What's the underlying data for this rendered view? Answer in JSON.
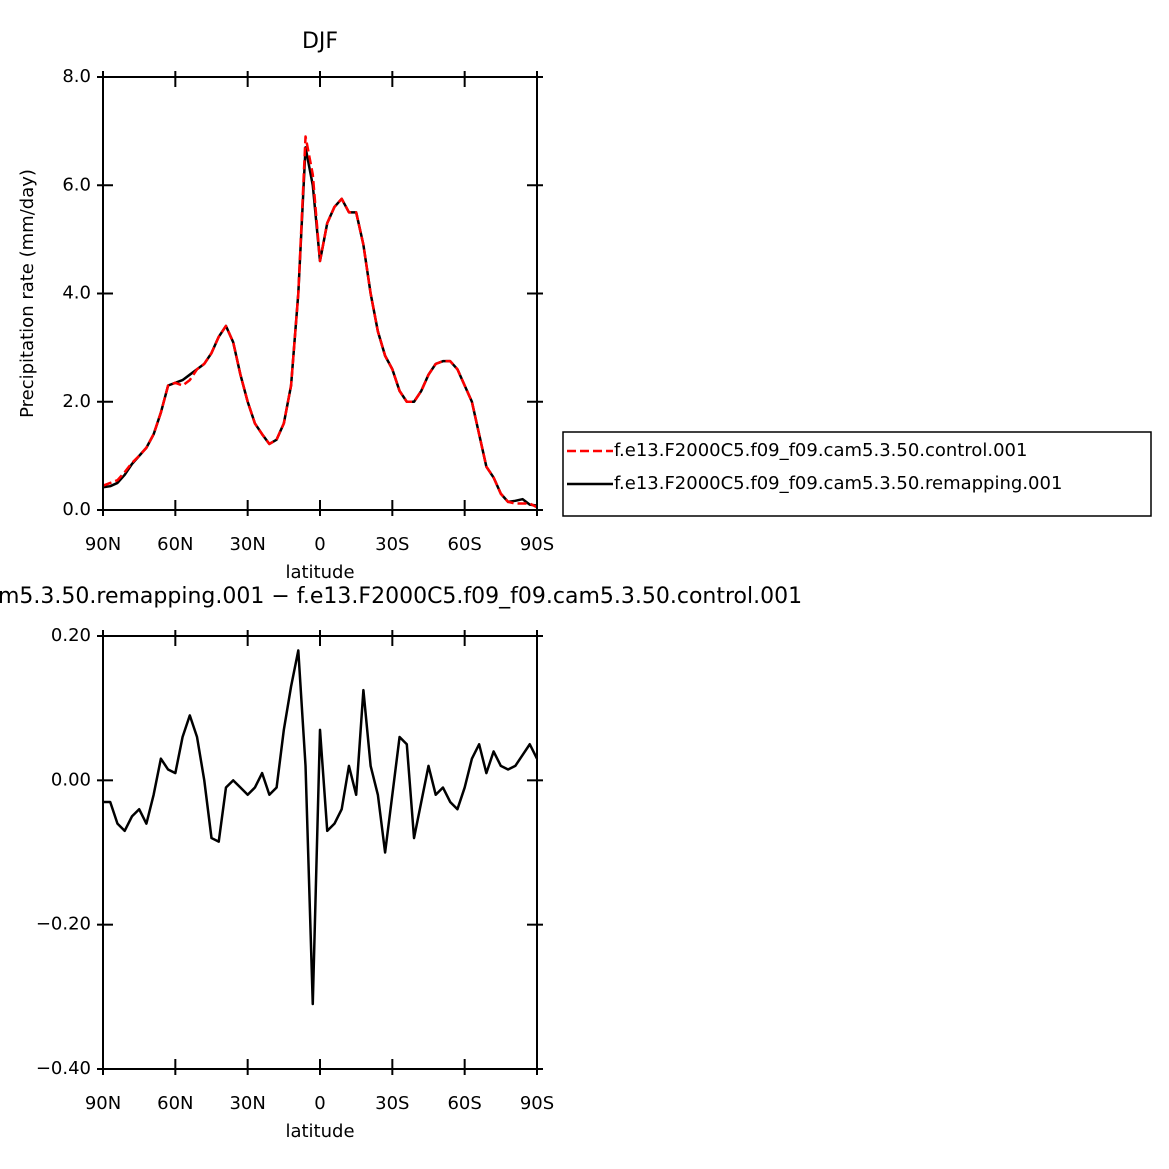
{
  "chart_data": [
    {
      "type": "line",
      "title": "DJF",
      "xlabel": "latitude",
      "ylabel": "Precipitation rate (mm/day)",
      "x": [
        90,
        87,
        84,
        81,
        78,
        75,
        72,
        69,
        66,
        63,
        60,
        57,
        54,
        51,
        48,
        45,
        42,
        39,
        36,
        33,
        30,
        27,
        24,
        21,
        18,
        15,
        12,
        9,
        6,
        3,
        0,
        -3,
        -6,
        -9,
        -12,
        -15,
        -18,
        -21,
        -24,
        -27,
        -30,
        -33,
        -36,
        -39,
        -42,
        -45,
        -48,
        -51,
        -54,
        -57,
        -60,
        -63,
        -66,
        -69,
        -72,
        -75,
        -78,
        -81,
        -84,
        -87,
        -90
      ],
      "series": [
        {
          "name": "f.e13.F2000C5.f09_f09.cam5.3.50.control.001",
          "color": "#ff0000",
          "linestyle": "dashed",
          "values": [
            0.45,
            0.5,
            0.55,
            0.7,
            0.87,
            1.0,
            1.15,
            1.4,
            1.8,
            2.3,
            2.35,
            2.3,
            2.4,
            2.6,
            2.7,
            2.9,
            3.2,
            3.4,
            3.1,
            2.5,
            2.0,
            1.6,
            1.4,
            1.22,
            1.3,
            1.6,
            2.3,
            4.0,
            6.9,
            6.2,
            4.6,
            5.3,
            5.6,
            5.75,
            5.5,
            5.5,
            4.9,
            4.0,
            3.3,
            2.85,
            2.6,
            2.2,
            2.0,
            2.0,
            2.2,
            2.5,
            2.7,
            2.75,
            2.75,
            2.6,
            2.3,
            2.0,
            1.4,
            0.8,
            0.6,
            0.3,
            0.15,
            0.12,
            0.12,
            0.12,
            0.05
          ]
        },
        {
          "name": "f.e13.F2000C5.f09_f09.cam5.3.50.remapping.001",
          "color": "#000000",
          "linestyle": "solid",
          "values": [
            0.42,
            0.44,
            0.5,
            0.65,
            0.85,
            1.0,
            1.15,
            1.4,
            1.8,
            2.3,
            2.35,
            2.4,
            2.5,
            2.6,
            2.7,
            2.9,
            3.2,
            3.4,
            3.1,
            2.5,
            2.0,
            1.6,
            1.4,
            1.22,
            1.3,
            1.6,
            2.3,
            4.0,
            6.7,
            6.0,
            4.6,
            5.3,
            5.6,
            5.75,
            5.5,
            5.5,
            4.9,
            4.0,
            3.3,
            2.85,
            2.6,
            2.2,
            2.0,
            2.0,
            2.2,
            2.5,
            2.7,
            2.75,
            2.75,
            2.6,
            2.3,
            2.0,
            1.4,
            0.8,
            0.6,
            0.3,
            0.15,
            0.17,
            0.2,
            0.1,
            0.08
          ]
        }
      ],
      "xlim": [
        90,
        -90
      ],
      "xticks": [
        {
          "value": 90,
          "label": "90N"
        },
        {
          "value": 60,
          "label": "60N"
        },
        {
          "value": 30,
          "label": "30N"
        },
        0,
        {
          "value": -30,
          "label": "30S"
        },
        {
          "value": -60,
          "label": "60S"
        },
        {
          "value": -90,
          "label": "90S"
        }
      ],
      "ylim": [
        0,
        8
      ],
      "yticks": [
        {
          "value": 0,
          "label": "0.0"
        },
        {
          "value": 2,
          "label": "2.0"
        },
        {
          "value": 4,
          "label": "4.0"
        },
        {
          "value": 6,
          "label": "6.0"
        },
        {
          "value": 8,
          "label": "8.0"
        }
      ],
      "grid": false
    },
    {
      "type": "line",
      "title": "m5.3.50.remapping.001 − f.e13.F2000C5.f09_f09.cam5.3.50.control.001",
      "xlabel": "latitude",
      "x": [
        90,
        87,
        84,
        81,
        78,
        75,
        72,
        69,
        66,
        63,
        60,
        57,
        54,
        51,
        48,
        45,
        42,
        39,
        36,
        33,
        30,
        27,
        24,
        21,
        18,
        15,
        12,
        9,
        6,
        3,
        0,
        -3,
        -6,
        -9,
        -12,
        -15,
        -18,
        -21,
        -24,
        -27,
        -30,
        -33,
        -36,
        -39,
        -42,
        -45,
        -48,
        -51,
        -54,
        -57,
        -60,
        -63,
        -66,
        -69,
        -72,
        -75,
        -78,
        -81,
        -84,
        -87,
        -90
      ],
      "color": "#000000",
      "values": [
        -0.03,
        -0.03,
        -0.06,
        -0.07,
        -0.05,
        -0.04,
        -0.06,
        -0.02,
        0.03,
        0.015,
        0.01,
        0.06,
        0.09,
        0.06,
        0.0,
        -0.08,
        -0.085,
        -0.01,
        0.0,
        -0.01,
        -0.02,
        -0.01,
        0.01,
        -0.02,
        -0.01,
        0.07,
        0.13,
        0.18,
        0.02,
        -0.31,
        0.07,
        -0.07,
        -0.06,
        -0.04,
        0.02,
        -0.02,
        0.125,
        0.02,
        -0.02,
        -0.1,
        -0.02,
        0.06,
        0.05,
        -0.08,
        -0.03,
        0.02,
        -0.02,
        -0.01,
        -0.03,
        -0.04,
        -0.01,
        0.03,
        0.05,
        0.01,
        0.04,
        0.02,
        0.015,
        0.02,
        0.035,
        0.05,
        0.03
      ],
      "xlim": [
        90,
        -90
      ],
      "xticks": [
        {
          "value": 90,
          "label": "90N"
        },
        {
          "value": 60,
          "label": "60N"
        },
        {
          "value": 30,
          "label": "30N"
        },
        0,
        {
          "value": -30,
          "label": "30S"
        },
        {
          "value": -60,
          "label": "60S"
        },
        {
          "value": -90,
          "label": "90S"
        }
      ],
      "ylim": [
        -0.4,
        0.2
      ],
      "yticks": [
        {
          "value": -0.4,
          "label": "−0.40"
        },
        {
          "value": -0.2,
          "label": "−0.20"
        },
        {
          "value": 0,
          "label": "0.00"
        },
        {
          "value": 0.2,
          "label": "0.20"
        }
      ],
      "grid": false
    }
  ]
}
